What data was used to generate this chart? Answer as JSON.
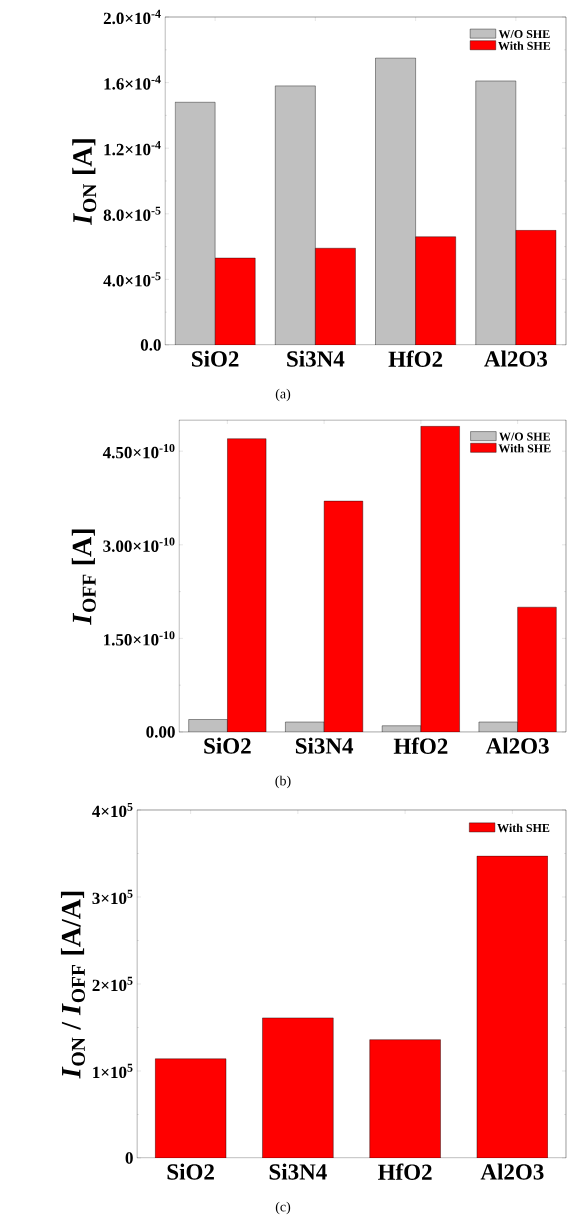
{
  "chart_data": [
    {
      "type": "bar",
      "categories": [
        "SiO2",
        "Si3N4",
        "HfO2",
        "Al2O3"
      ],
      "ylabel": "*I*$_{ON}$ [A]",
      "ylim": [
        0,
        0.0002
      ],
      "yticks": [
        {
          "value": 0,
          "label": "0.0"
        },
        {
          "value": 4e-05,
          "label": "4.0×10$^{-5}$"
        },
        {
          "value": 8e-05,
          "label": "8.0×10$^{-5}$"
        },
        {
          "value": 0.00012,
          "label": "1.2×10$^{-4}$"
        },
        {
          "value": 0.00016,
          "label": "1.6×10$^{-4}$"
        },
        {
          "value": 0.0002,
          "label": "2.0×10$^{-4}$"
        }
      ],
      "legend": "top right",
      "annotations": [
        "(a)"
      ],
      "series": [
        {
          "name": "W/O SHE",
          "color": "#c0c0c0",
          "values": [
            0.000148,
            0.000158,
            0.000175,
            0.000161
          ]
        },
        {
          "name": "With SHE",
          "color": "#ff0000",
          "values": [
            5.3e-05,
            5.9e-05,
            6.6e-05,
            7e-05
          ]
        }
      ]
    },
    {
      "type": "bar",
      "categories": [
        "SiO2",
        "Si3N4",
        "HfO2",
        "Al2O3"
      ],
      "ylabel": "*I*$_{OFF}$ [A]",
      "ylim": [
        0,
        5e-10
      ],
      "yticks": [
        {
          "value": 0,
          "label": "0.00"
        },
        {
          "value": 1.5e-10,
          "label": "1.50×10$^{-10}$"
        },
        {
          "value": 3e-10,
          "label": "3.00×10$^{-10}$"
        },
        {
          "value": 4.5e-10,
          "label": "4.50×10$^{-10}$"
        }
      ],
      "legend": "top right",
      "annotations": [
        "(b)"
      ],
      "series": [
        {
          "name": "W/O SHE",
          "color": "#c0c0c0",
          "values": [
            2e-11,
            1.6e-11,
            1e-11,
            1.6e-11
          ]
        },
        {
          "name": "With SHE",
          "color": "#ff0000",
          "values": [
            4.7e-10,
            3.7e-10,
            4.9e-10,
            2e-10
          ]
        }
      ]
    },
    {
      "type": "bar",
      "categories": [
        "SiO2",
        "Si3N4",
        "HfO2",
        "Al2O3"
      ],
      "ylabel": "*I*$_{ON}$ / *I*$_{OFF}$ [A/A]",
      "ylim": [
        0,
        400000
      ],
      "yticks": [
        {
          "value": 0,
          "label": "0"
        },
        {
          "value": 100000,
          "label": "1×10$^{5}$"
        },
        {
          "value": 200000,
          "label": "2×10$^{5}$"
        },
        {
          "value": 300000,
          "label": "3×10$^{5}$"
        },
        {
          "value": 400000,
          "label": "4×10$^{5}$"
        }
      ],
      "legend": "top right",
      "annotations": [
        "(c)"
      ],
      "series": [
        {
          "name": "With SHE",
          "color": "#ff0000",
          "values": [
            114000,
            161000,
            136000,
            347000
          ]
        }
      ]
    }
  ]
}
